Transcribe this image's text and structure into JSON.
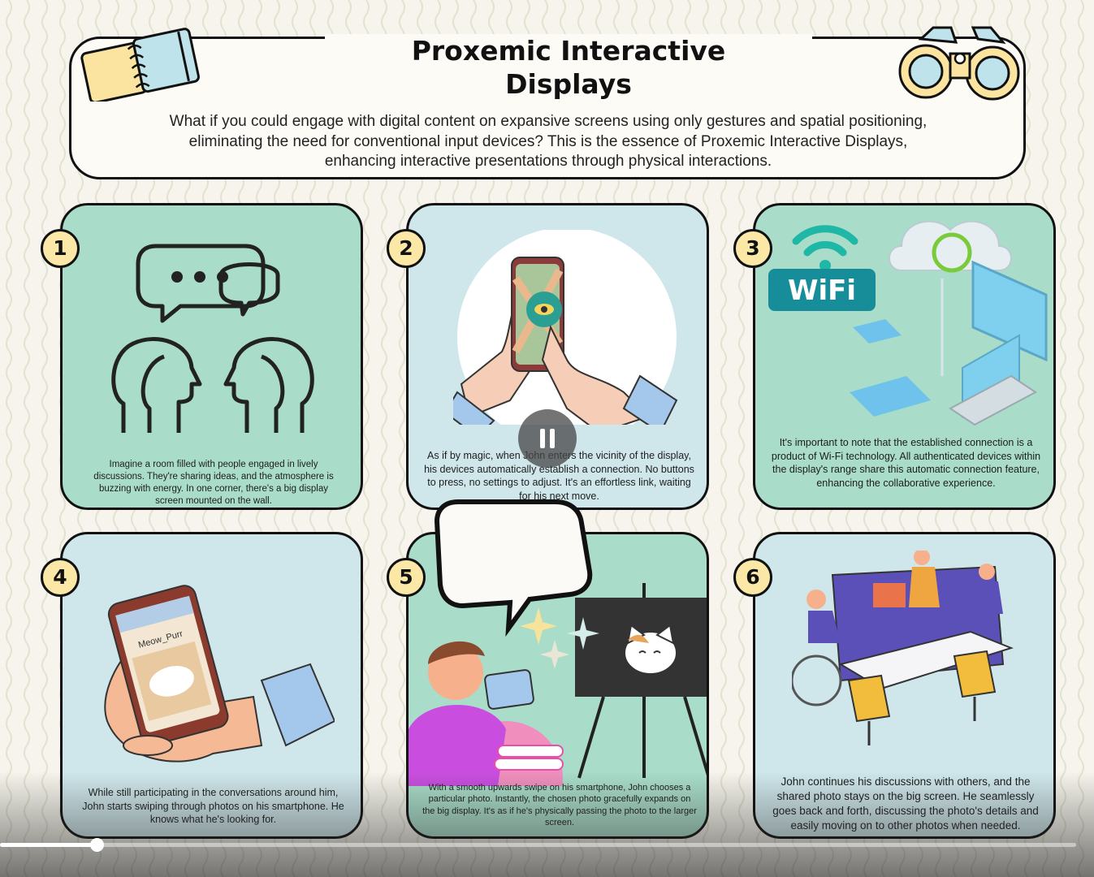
{
  "header": {
    "title_line1": "Proxemic Interactive",
    "title_line2": "Displays",
    "intro": "What if you could engage with digital content on expansive screens using only gestures and spatial positioning, eliminating the need for conventional input devices? This is the essence of Proxemic Interactive Displays, enhancing interactive presentations through physical interactions."
  },
  "panels": [
    {
      "number": "1",
      "caption": "Imagine a room filled with people engaged in lively discussions. They're sharing ideas, and the atmosphere is buzzing with energy. In one corner, there's a big display screen mounted on the wall.",
      "illustration": "conversation-heads-icon"
    },
    {
      "number": "2",
      "caption": "As if by magic, when John enters the vicinity of the display, his devices automatically establish a connection. No buttons to press, no settings to adjust. It's an effortless link, waiting for his next move.",
      "illustration": "phone-map-hands"
    },
    {
      "number": "3",
      "caption": "It's important to note that the established connection is a product of Wi-Fi technology. All authenticated devices within the display's range share this automatic connection feature, enhancing the collaborative experience.",
      "illustration": "wifi-cloud-devices",
      "wifi_label": "WiFi"
    },
    {
      "number": "4",
      "caption": "While still participating in the conversations around him, John starts swiping through photos on his smartphone. He knows what he's looking for.",
      "illustration": "hand-holding-phone",
      "phone_text": "Meow_Purr"
    },
    {
      "number": "5",
      "caption": "With a smooth upwards swipe on his smartphone, John chooses a particular photo. Instantly, the chosen photo gracefully expands on the big display. It's as if he's physically passing the photo to the larger screen.",
      "illustration": "boy-phone-cat-screen"
    },
    {
      "number": "6",
      "caption": "John continues his discussions with others, and the shared photo stays on the big screen. He seamlessly goes back and forth, discussing the photo's details and easily moving on to other photos when needed.",
      "illustration": "team-meeting-table"
    }
  ],
  "player": {
    "progress": 0.09,
    "state": "playing",
    "pause_icon": "pause-icon"
  },
  "colors": {
    "mint": "#a9ddc9",
    "light_blue": "#cfe7eb",
    "badge": "#fbe7a6",
    "outline": "#111111",
    "background": "#f6f4ec"
  }
}
